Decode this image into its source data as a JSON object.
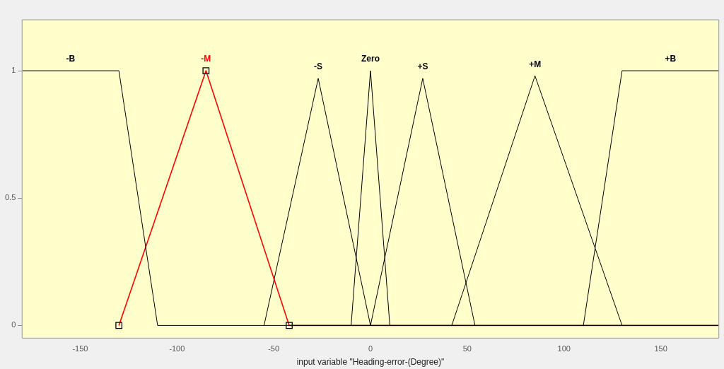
{
  "chart_data": {
    "type": "line",
    "xlabel": "input variable \"Heading-error-(Degree)\"",
    "xlim": [
      -180,
      180
    ],
    "xticks": [
      -150,
      -100,
      -50,
      0,
      50,
      100,
      150
    ],
    "ylim": [
      -0.05,
      1.2
    ],
    "yticks": [
      0,
      0.5,
      1
    ],
    "grid": false,
    "legend": false,
    "marker": "none",
    "line_style": "solid",
    "series": [
      {
        "name": "-B",
        "color": "#000000",
        "x": [
          -180,
          -130,
          -110,
          180
        ],
        "values": [
          1,
          1,
          0,
          0
        ]
      },
      {
        "name": "-S",
        "color": "#000000",
        "x": [
          -55,
          -27,
          0
        ],
        "values": [
          0,
          0.97,
          0
        ]
      },
      {
        "name": "Zero",
        "color": "#000000",
        "x": [
          -10,
          0,
          10
        ],
        "values": [
          0,
          1,
          0
        ]
      },
      {
        "name": "+S",
        "color": "#000000",
        "x": [
          0,
          27,
          54
        ],
        "values": [
          0,
          0.97,
          0
        ]
      },
      {
        "name": "+M",
        "color": "#000000",
        "x": [
          42,
          85,
          130
        ],
        "values": [
          0,
          0.98,
          0
        ]
      },
      {
        "name": "+B",
        "color": "#000000",
        "x": [
          110,
          130,
          180
        ],
        "values": [
          0,
          1,
          1
        ]
      },
      {
        "name": "-M",
        "color": "#ff0000",
        "marker": "square",
        "x": [
          -130,
          -85,
          -42,
          180
        ],
        "values": [
          0,
          1,
          0,
          0
        ]
      }
    ]
  }
}
